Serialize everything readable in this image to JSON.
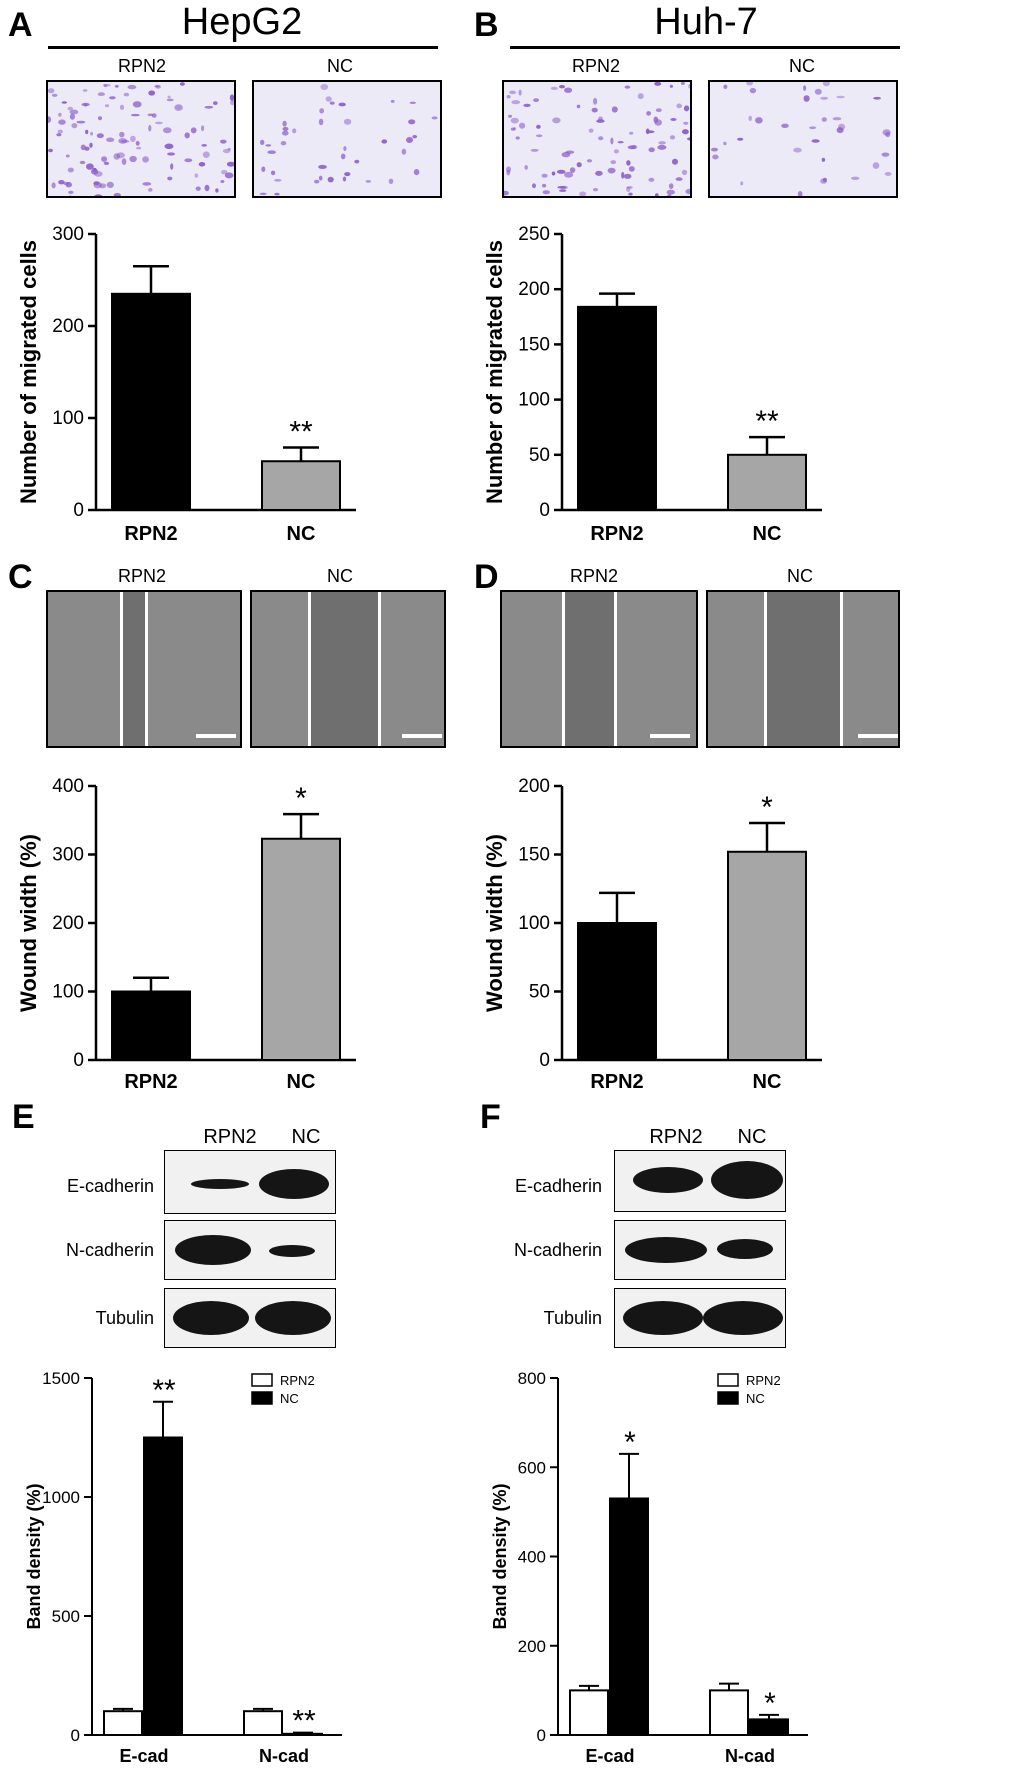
{
  "panels": {
    "A": {
      "letter": "A",
      "cell_line": "HepG2",
      "images": [
        "RPN2",
        "NC"
      ]
    },
    "B": {
      "letter": "B",
      "cell_line": "Huh-7",
      "images": [
        "RPN2",
        "NC"
      ]
    },
    "C": {
      "letter": "C",
      "images": [
        "RPN2",
        "NC"
      ]
    },
    "D": {
      "letter": "D",
      "images": [
        "RPN2",
        "NC"
      ]
    },
    "E": {
      "letter": "E",
      "lanes": [
        "RPN2",
        "NC"
      ],
      "blots": [
        "E-cadherin",
        "N-cadherin",
        "Tubulin"
      ]
    },
    "F": {
      "letter": "F",
      "lanes": [
        "RPN2",
        "NC"
      ],
      "blots": [
        "E-cadherin",
        "N-cadherin",
        "Tubulin"
      ]
    }
  },
  "colors": {
    "rpn2_bar": "#000000",
    "nc_bar": "#a6a6a6",
    "nc_bar_wb": "#000000",
    "rpn2_bar_wb": "#ffffff",
    "transwell_stain": "#8a5cc9"
  },
  "chart_data": [
    {
      "id": "A",
      "type": "bar",
      "categories": [
        "RPN2",
        "NC"
      ],
      "values": [
        235,
        53
      ],
      "errors": [
        30,
        15
      ],
      "significance": [
        "",
        "**"
      ],
      "ylabel": "Number of migrated cells",
      "ylim": [
        0,
        300
      ],
      "yticks": [
        0,
        100,
        200,
        300
      ],
      "colors": [
        "#000000",
        "#a6a6a6"
      ]
    },
    {
      "id": "B",
      "type": "bar",
      "categories": [
        "RPN2",
        "NC"
      ],
      "values": [
        184,
        50
      ],
      "errors": [
        12,
        16
      ],
      "significance": [
        "",
        "**"
      ],
      "ylabel": "Number of migrated cells",
      "ylim": [
        0,
        250
      ],
      "yticks": [
        0,
        50,
        100,
        150,
        200,
        250
      ],
      "colors": [
        "#000000",
        "#a6a6a6"
      ]
    },
    {
      "id": "C",
      "type": "bar",
      "categories": [
        "RPN2",
        "NC"
      ],
      "values": [
        100,
        323
      ],
      "errors": [
        20,
        36
      ],
      "significance": [
        "",
        "*"
      ],
      "ylabel": "Wound width (%)",
      "ylim": [
        0,
        400
      ],
      "yticks": [
        0,
        100,
        200,
        300,
        400
      ],
      "colors": [
        "#000000",
        "#a6a6a6"
      ]
    },
    {
      "id": "D",
      "type": "bar",
      "categories": [
        "RPN2",
        "NC"
      ],
      "values": [
        100,
        152
      ],
      "errors": [
        22,
        21
      ],
      "significance": [
        "",
        "*"
      ],
      "ylabel": "Wound width (%)",
      "ylim": [
        0,
        200
      ],
      "yticks": [
        0,
        50,
        100,
        150,
        200
      ],
      "colors": [
        "#000000",
        "#a6a6a6"
      ]
    },
    {
      "id": "E",
      "type": "bar",
      "categories": [
        "E-cad",
        "N-cad"
      ],
      "series": [
        {
          "name": "RPN2",
          "values": [
            100,
            100
          ],
          "errors": [
            10,
            10
          ],
          "color": "#ffffff"
        },
        {
          "name": "NC",
          "values": [
            1250,
            5
          ],
          "errors": [
            150,
            5
          ],
          "color": "#000000"
        }
      ],
      "significance": [
        "**",
        "**"
      ],
      "ylabel": "Band density (%)",
      "ylim": [
        0,
        1500
      ],
      "yticks": [
        0,
        500,
        1000,
        1500
      ],
      "legend": "top-right"
    },
    {
      "id": "F",
      "type": "bar",
      "categories": [
        "E-cad",
        "N-cad"
      ],
      "series": [
        {
          "name": "RPN2",
          "values": [
            100,
            100
          ],
          "errors": [
            10,
            15
          ],
          "color": "#ffffff"
        },
        {
          "name": "NC",
          "values": [
            530,
            35
          ],
          "errors": [
            100,
            10
          ],
          "color": "#000000"
        }
      ],
      "significance": [
        "*",
        "*"
      ],
      "ylabel": "Band density (%)",
      "ylim": [
        0,
        800
      ],
      "yticks": [
        0,
        200,
        400,
        600,
        800
      ],
      "legend": "top-right"
    }
  ]
}
